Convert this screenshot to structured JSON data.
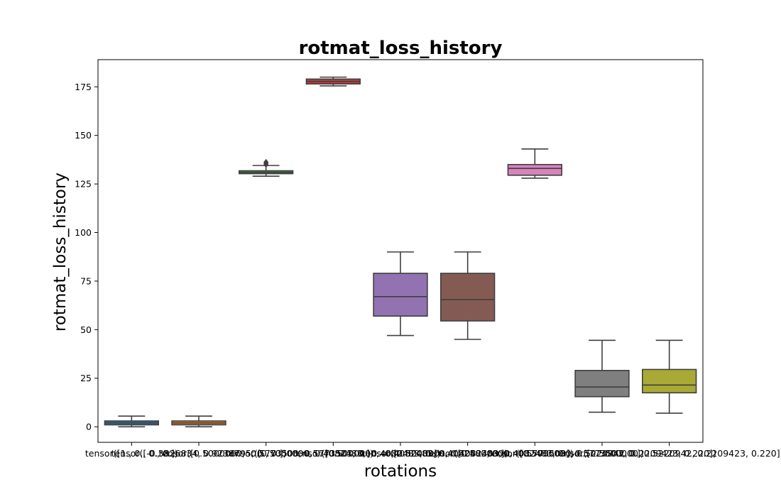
{
  "chart_data": {
    "type": "box",
    "title": "rotmat_loss_history",
    "xlabel": "rotations",
    "ylabel": "rotmat_loss_history",
    "ylim": [
      -8,
      189
    ],
    "yticks": [
      0,
      25,
      50,
      75,
      100,
      125,
      150,
      175
    ],
    "grid": false,
    "categories": [
      "tensor([1., 0., 0., 0.])",
      "tensor([-0.3826834, 0.9238795, 0., 0.])",
      "tensor([0.5000000, -0.5773503, 0.5773503, 0.])",
      "tensor([0.5000000, 0.4082483, -0.4082483, 0.])",
      "tensor([0.5000000, -0.4082483, 0.4082483, 0.])",
      "tensor([0.5000000, 0.4082483, 0.4082483, 0.])",
      "tensor([0.5000000, -0.5773503, -0.5773503, 0.])",
      "tensor([0.5000000, 0.5220942, 0.2209423, 0.220])",
      "tensor([0.5000000, 0.5220942, 0.2209423, 0.220])"
    ],
    "boxes": [
      {
        "whislo": 0,
        "q1": 1,
        "med": 2,
        "q3": 3,
        "whishi": 5.5,
        "color": "#3274a1",
        "fliers": []
      },
      {
        "whislo": 0,
        "q1": 1,
        "med": 2,
        "q3": 3,
        "whishi": 5.5,
        "color": "#e1812c",
        "fliers": []
      },
      {
        "whislo": 129,
        "q1": 130.3,
        "med": 131,
        "q3": 131.8,
        "whishi": 134.5,
        "color": "#3a923a",
        "fliers": [
          135,
          135.7,
          136.2
        ]
      },
      {
        "whislo": 175.5,
        "q1": 176.5,
        "med": 177.8,
        "q3": 179,
        "whishi": 180,
        "color": "#c03d3e",
        "fliers": []
      },
      {
        "whislo": 47,
        "q1": 57,
        "med": 67,
        "q3": 79,
        "whishi": 90,
        "color": "#9372b2",
        "fliers": []
      },
      {
        "whislo": 45,
        "q1": 54.5,
        "med": 65.5,
        "q3": 79,
        "whishi": 90,
        "color": "#845b53",
        "fliers": []
      },
      {
        "whislo": 128,
        "q1": 129.5,
        "med": 133,
        "q3": 135,
        "whishi": 143,
        "color": "#d684bd",
        "fliers": []
      },
      {
        "whislo": 7.5,
        "q1": 15.5,
        "med": 20.5,
        "q3": 29,
        "whishi": 44.5,
        "color": "#7f7f7f",
        "fliers": []
      },
      {
        "whislo": 7,
        "q1": 17.5,
        "med": 21.5,
        "q3": 29.5,
        "whishi": 44.5,
        "color": "#a9aa35",
        "fliers": []
      }
    ]
  }
}
